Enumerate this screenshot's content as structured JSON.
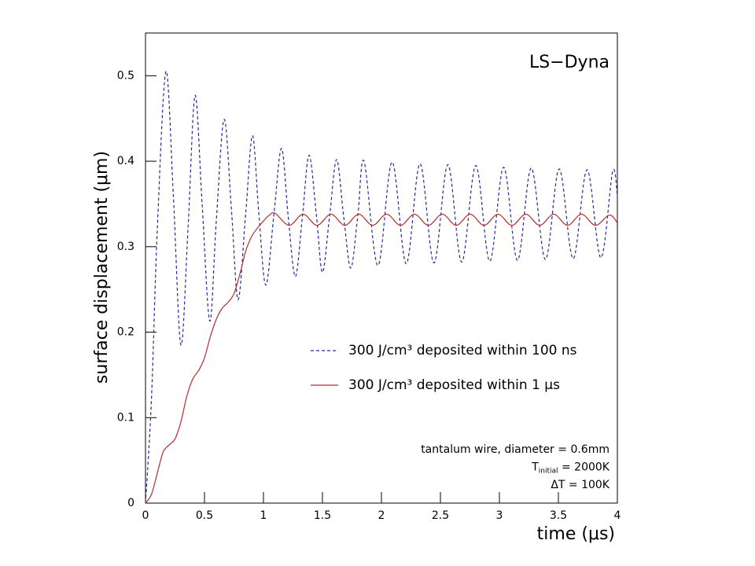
{
  "chart_data": {
    "type": "line",
    "label": "LS−Dyna",
    "xlabel": "time (μs)",
    "ylabel": "surface displacement (μm)",
    "xlim": [
      0,
      4
    ],
    "ylim": [
      0,
      0.55
    ],
    "xticks": [
      0,
      0.5,
      1,
      1.5,
      2,
      2.5,
      3,
      3.5,
      4
    ],
    "yticks": [
      0,
      0.1,
      0.2,
      0.3,
      0.4,
      0.5
    ],
    "series": [
      {
        "name": "300 J/cm³ deposited within 100 ns",
        "color": "#2a2a9a",
        "dash": true,
        "x": [
          0,
          0.05,
          0.1,
          0.173,
          0.236,
          0.3,
          0.36,
          0.42,
          0.48,
          0.545,
          0.6,
          0.667,
          0.73,
          0.785,
          0.85,
          0.907,
          0.96,
          1.02,
          1.09,
          1.153,
          1.21,
          1.27,
          1.33,
          1.387,
          1.45,
          1.5,
          1.56,
          1.62,
          1.68,
          1.74,
          1.8,
          1.853,
          1.97,
          2.09,
          2.21,
          2.327,
          2.445,
          2.563,
          2.68,
          2.8,
          2.918,
          3.036,
          3.153,
          3.27,
          3.39,
          3.507,
          3.625,
          3.743,
          3.86,
          3.96,
          4
        ],
        "values": [
          0,
          0.12,
          0.32,
          0.505,
          0.36,
          0.185,
          0.32,
          0.477,
          0.35,
          0.213,
          0.33,
          0.449,
          0.34,
          0.238,
          0.34,
          0.43,
          0.34,
          0.255,
          0.34,
          0.415,
          0.335,
          0.265,
          0.335,
          0.407,
          0.335,
          0.27,
          0.335,
          0.402,
          0.335,
          0.275,
          0.337,
          0.4,
          0.278,
          0.399,
          0.28,
          0.397,
          0.281,
          0.396,
          0.282,
          0.395,
          0.283,
          0.393,
          0.284,
          0.392,
          0.285,
          0.391,
          0.286,
          0.39,
          0.287,
          0.388,
          0.36
        ]
      },
      {
        "name": "300 J/cm³ deposited within 1 μs",
        "color": "#b03030",
        "dash": false,
        "x": [
          0,
          0.05,
          0.1,
          0.15,
          0.2,
          0.25,
          0.3,
          0.35,
          0.4,
          0.45,
          0.5,
          0.55,
          0.6,
          0.65,
          0.7,
          0.75,
          0.8,
          0.85,
          0.9,
          0.95,
          1.0,
          1.05,
          1.1,
          1.218,
          1.336,
          1.454,
          1.572,
          1.69,
          1.808,
          1.926,
          2.044,
          2.162,
          2.28,
          2.398,
          2.516,
          2.634,
          2.752,
          2.87,
          2.988,
          3.106,
          3.224,
          3.342,
          3.46,
          3.578,
          3.696,
          3.814,
          3.932,
          4.0
        ],
        "values": [
          0,
          0.01,
          0.035,
          0.06,
          0.068,
          0.075,
          0.095,
          0.125,
          0.145,
          0.155,
          0.17,
          0.195,
          0.215,
          0.228,
          0.235,
          0.245,
          0.268,
          0.295,
          0.312,
          0.322,
          0.33,
          0.337,
          0.339,
          0.325,
          0.338,
          0.325,
          0.338,
          0.325,
          0.338,
          0.325,
          0.338,
          0.325,
          0.338,
          0.325,
          0.338,
          0.325,
          0.338,
          0.325,
          0.338,
          0.325,
          0.338,
          0.325,
          0.338,
          0.325,
          0.338,
          0.325,
          0.337,
          0.328
        ]
      }
    ],
    "annotations": [
      {
        "text": "tantalum wire, diameter = 0.6mm"
      },
      {
        "text": "T",
        "sub": "initial",
        "rest": " = 2000K"
      },
      {
        "text": "ΔT =   100K"
      }
    ]
  }
}
